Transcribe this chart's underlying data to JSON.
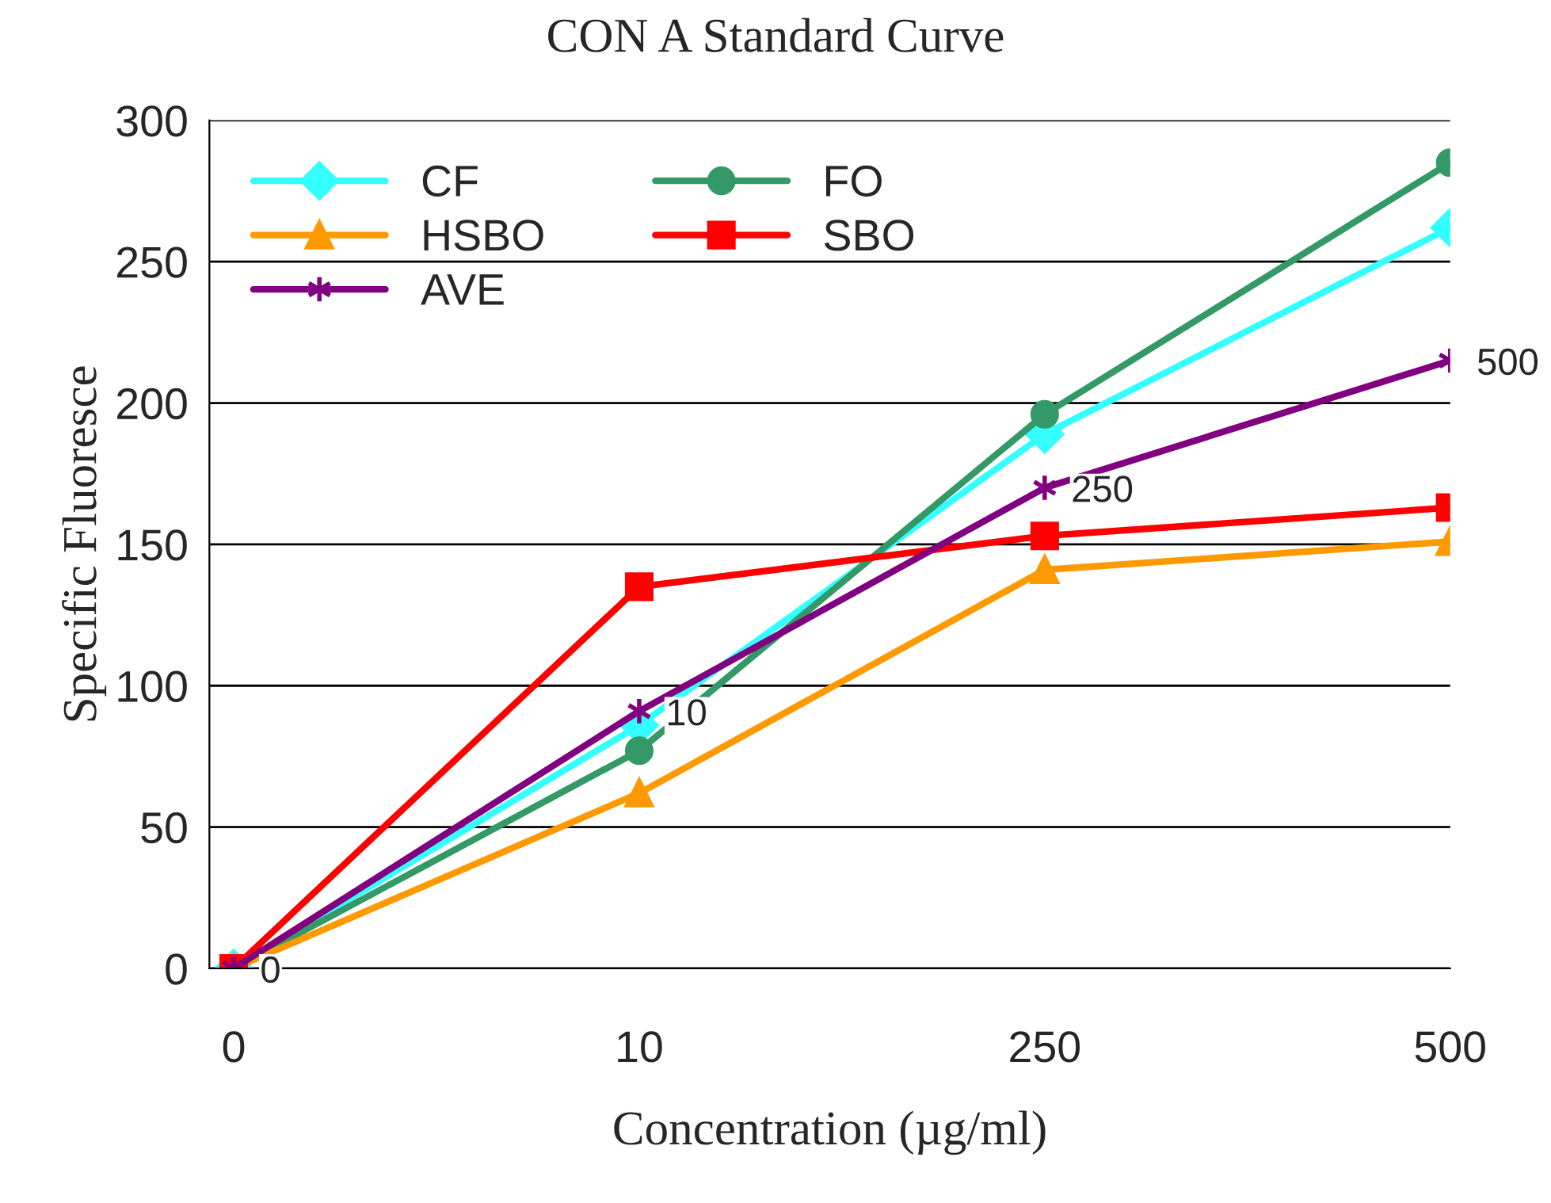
{
  "chart_data": {
    "type": "line",
    "title": "CON A Standard Curve",
    "xlabel": "Concentration (µg/ml)",
    "ylabel": "Specific Fluoresce",
    "categories": [
      "0",
      "10",
      "250",
      "500"
    ],
    "series": [
      {
        "name": "CF",
        "color": "#33ffff",
        "marker": "diamond",
        "values": [
          0,
          86,
          189,
          262
        ]
      },
      {
        "name": "FO",
        "color": "#339966",
        "marker": "circle",
        "values": [
          0,
          77,
          196,
          285
        ]
      },
      {
        "name": "HSBO",
        "color": "#ff9900",
        "marker": "triangle",
        "values": [
          0,
          62,
          141,
          151
        ]
      },
      {
        "name": "SBO",
        "color": "#ff0000",
        "marker": "square",
        "values": [
          0,
          135,
          153,
          163
        ]
      },
      {
        "name": "AVE",
        "color": "#800080",
        "marker": "cross",
        "values": [
          0,
          91,
          170,
          215
        ]
      }
    ],
    "annotations": [
      {
        "text": "0",
        "x": "0",
        "y": 0
      },
      {
        "text": "10",
        "x": "10",
        "y": 91
      },
      {
        "text": "250",
        "x": "250",
        "y": 170
      },
      {
        "text": "500",
        "x": "500",
        "y": 215
      }
    ],
    "ylim": [
      0,
      300
    ],
    "yticks": [
      0,
      50,
      100,
      150,
      200,
      250,
      300
    ],
    "grid": "y",
    "legend": "top left",
    "line_style": "solid"
  }
}
